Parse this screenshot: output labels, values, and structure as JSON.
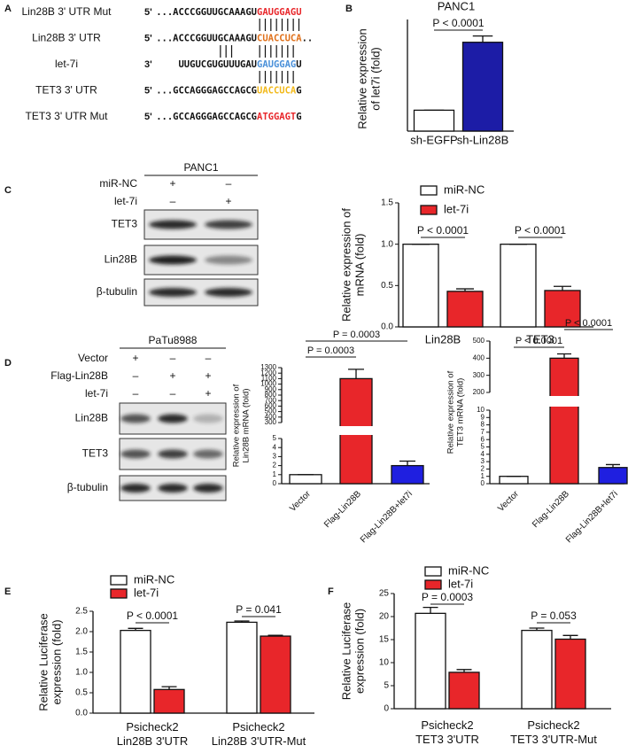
{
  "panels": [
    "A",
    "B",
    "C",
    "D",
    "E",
    "F"
  ],
  "sequences": [
    {
      "name": "Lin28B 3' UTR Mut",
      "end": "5'",
      "prefix": "...ACCCGGUUGCAAAGU",
      "site": "GAUGGAGU",
      "color": "#e8262a"
    },
    {
      "name": "Lin28B 3' UTR",
      "end": "5'",
      "prefix": "...ACCCGGUUGCAAAGU",
      "site": "CUACCUCA",
      "suffix": "..",
      "color": "#e0711b"
    },
    {
      "name": "let-7i",
      "end": "3'",
      "prefix": "UUGUCGUGUUUGAU",
      "site": "GAUGGAG",
      "suffix": "U",
      "color": "#4a90d9"
    },
    {
      "name": "TET3 3' UTR",
      "end": "5'",
      "prefix": "...GCCAGGGAGCCAGCG",
      "site": "UACCUCA",
      "suffix": "G",
      "color": "#f2b91a"
    },
    {
      "name": "TET3 3' UTR Mut",
      "end": "5'",
      "prefix": "...GCCAGGGAGCCAGCG",
      "site": "ATGGAGT",
      "suffix": "G",
      "color": "#e8262a"
    }
  ],
  "blots": [
    {
      "title": "PANC1",
      "conditions": [
        {
          "name": "miR-NC",
          "marks": [
            "+",
            "–"
          ]
        },
        {
          "name": "let-7i",
          "marks": [
            "–",
            "+"
          ]
        }
      ],
      "bands": [
        "TET3",
        "Lin28B",
        "β-tubulin"
      ]
    },
    {
      "title": "PaTu8988",
      "conditions": [
        {
          "name": "Vector",
          "marks": [
            "+",
            "–",
            "–"
          ]
        },
        {
          "name": "Flag-Lin28B",
          "marks": [
            "–",
            "+",
            "+"
          ]
        },
        {
          "name": "let-7i",
          "marks": [
            "–",
            "–",
            "+"
          ]
        }
      ],
      "bands": [
        "Lin28B",
        "TET3",
        "β-tubulin"
      ]
    }
  ],
  "chart_data": [
    {
      "type": "bar",
      "title": "PANC1",
      "y_label": [
        "Relative expression",
        "of let7i (fold)"
      ],
      "categories": [
        "sh-EGFP",
        "sh-Lin28B"
      ],
      "values": [
        1,
        4.25
      ],
      "errors": [
        0,
        0.3
      ],
      "colors": [
        "#ffffff",
        "#1c1ca6"
      ],
      "ylim": [
        0,
        5
      ],
      "annotations": [
        "P < 0.0001"
      ]
    },
    {
      "type": "bar",
      "y_label": [
        "Relative expression of",
        "mRNA (fold)"
      ],
      "categories": [
        "Lin28B",
        "TET3"
      ],
      "series": [
        {
          "name": "miR-NC",
          "color": "#ffffff",
          "values": [
            1,
            1
          ],
          "errors": [
            0,
            0
          ]
        },
        {
          "name": "let-7i",
          "color": "#e8262a",
          "values": [
            0.43,
            0.44
          ],
          "errors": [
            0.03,
            0.05
          ]
        }
      ],
      "ylim": [
        0,
        1.5
      ],
      "yticks": [
        {
          "value": 0,
          "label": "0.0"
        },
        {
          "value": 0.5,
          "label": "0.5"
        },
        {
          "value": 1,
          "label": "1.0"
        },
        {
          "value": 1.5,
          "label": "1.5"
        }
      ],
      "annotations": [
        "P < 0.0001",
        "P < 0.0001"
      ]
    },
    {
      "type": "bar",
      "y_label": [
        "Relative expression of",
        "Lin28B mRNA (fold)"
      ],
      "categories": [
        "Vector",
        "Flag-Lin28B",
        "Flag-Lin28B+let7i"
      ],
      "values": [
        1,
        1100,
        2
      ],
      "errors": [
        0,
        170,
        0.5
      ],
      "colors": [
        "#ffffff",
        "#e8262a",
        "#1f1fe0"
      ],
      "ylim": [
        0,
        1300
      ],
      "ybreak": [
        5,
        300
      ],
      "yticks": [
        0,
        1,
        2,
        3,
        4,
        5,
        300,
        400,
        500,
        600,
        700,
        800,
        900,
        1000,
        1100,
        1200,
        1300
      ],
      "annotations": [
        "P = 0.0003",
        "P = 0.0003"
      ]
    },
    {
      "type": "bar",
      "y_label": [
        "Relative expression of",
        "TET3 mRNA (fold)"
      ],
      "categories": [
        "Vector",
        "Flag-Lin28B",
        "Flag-Lin28B+let7i"
      ],
      "values": [
        1,
        400,
        2.2
      ],
      "errors": [
        0,
        25,
        0.4
      ],
      "colors": [
        "#ffffff",
        "#e8262a",
        "#1f1fe0"
      ],
      "ylim": [
        0,
        500
      ],
      "ybreak": [
        10,
        200
      ],
      "yticks": [
        0,
        1,
        2,
        3,
        4,
        5,
        6,
        7,
        8,
        9,
        10,
        200,
        300,
        400,
        500
      ],
      "annotations": [
        "P < 0.0001",
        "P < 0.0001"
      ]
    },
    {
      "type": "bar",
      "y_label": [
        "Relative Luciferase",
        "expression (fold)"
      ],
      "categories": [
        [
          "Psicheck2",
          "Lin28B 3'UTR"
        ],
        [
          "Psicheck2",
          "Lin28B 3'UTR-Mut"
        ]
      ],
      "series": [
        {
          "name": "miR-NC",
          "color": "#ffffff",
          "values": [
            2.03,
            2.23
          ],
          "errors": [
            0.05,
            0.03
          ]
        },
        {
          "name": "let-7i",
          "color": "#e8262a",
          "values": [
            0.58,
            1.89
          ],
          "errors": [
            0.07,
            0.02
          ]
        }
      ],
      "ylim": [
        0,
        2.5
      ],
      "yticks": [
        {
          "value": 0,
          "label": "0.0"
        },
        {
          "value": 0.5,
          "label": "0.5"
        },
        {
          "value": 1,
          "label": "1.0"
        },
        {
          "value": 1.5,
          "label": "1.5"
        },
        {
          "value": 2,
          "label": "2.0"
        },
        {
          "value": 2.5,
          "label": "2.5"
        }
      ],
      "annotations": [
        "P < 0.0001",
        "P = 0.041"
      ]
    },
    {
      "type": "bar",
      "y_label": [
        "Relative Luciferase",
        "expression (fold)"
      ],
      "categories": [
        [
          "Psicheck2",
          "TET3 3'UTR"
        ],
        [
          "Psicheck2",
          "TET3 3'UTR-Mut"
        ]
      ],
      "series": [
        {
          "name": "miR-NC",
          "color": "#ffffff",
          "values": [
            20.7,
            17
          ],
          "errors": [
            1.3,
            0.5
          ]
        },
        {
          "name": "let-7i",
          "color": "#e8262a",
          "values": [
            7.9,
            15.1
          ],
          "errors": [
            0.6,
            0.8
          ]
        }
      ],
      "ylim": [
        0,
        25
      ],
      "yticks": [
        0,
        5,
        10,
        15,
        20,
        25
      ],
      "annotations": [
        "P = 0.0003",
        "P = 0.053"
      ]
    }
  ]
}
